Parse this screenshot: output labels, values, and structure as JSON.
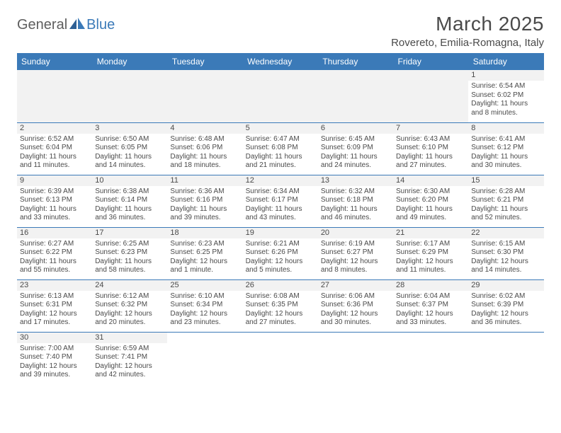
{
  "logo": {
    "part1": "General",
    "part2": "Blue"
  },
  "title": "March 2025",
  "location": "Rovereto, Emilia-Romagna, Italy",
  "colors": {
    "header_bg": "#3b7ab8",
    "header_text": "#ffffff",
    "daynum_bg": "#f2f2f2",
    "border": "#3b7ab8",
    "text": "#4a4a4a",
    "logo_gray": "#5e5e5e",
    "logo_blue": "#3b7ab8",
    "page_bg": "#ffffff"
  },
  "fonts": {
    "title_size": 28,
    "location_size": 15,
    "header_size": 12,
    "daynum_size": 11,
    "body_size": 10
  },
  "weekdays": [
    "Sunday",
    "Monday",
    "Tuesday",
    "Wednesday",
    "Thursday",
    "Friday",
    "Saturday"
  ],
  "weeks": [
    [
      null,
      null,
      null,
      null,
      null,
      null,
      {
        "n": "1",
        "sunrise": "6:54 AM",
        "sunset": "6:02 PM",
        "daylight": "11 hours and 8 minutes."
      }
    ],
    [
      {
        "n": "2",
        "sunrise": "6:52 AM",
        "sunset": "6:04 PM",
        "daylight": "11 hours and 11 minutes."
      },
      {
        "n": "3",
        "sunrise": "6:50 AM",
        "sunset": "6:05 PM",
        "daylight": "11 hours and 14 minutes."
      },
      {
        "n": "4",
        "sunrise": "6:48 AM",
        "sunset": "6:06 PM",
        "daylight": "11 hours and 18 minutes."
      },
      {
        "n": "5",
        "sunrise": "6:47 AM",
        "sunset": "6:08 PM",
        "daylight": "11 hours and 21 minutes."
      },
      {
        "n": "6",
        "sunrise": "6:45 AM",
        "sunset": "6:09 PM",
        "daylight": "11 hours and 24 minutes."
      },
      {
        "n": "7",
        "sunrise": "6:43 AM",
        "sunset": "6:10 PM",
        "daylight": "11 hours and 27 minutes."
      },
      {
        "n": "8",
        "sunrise": "6:41 AM",
        "sunset": "6:12 PM",
        "daylight": "11 hours and 30 minutes."
      }
    ],
    [
      {
        "n": "9",
        "sunrise": "6:39 AM",
        "sunset": "6:13 PM",
        "daylight": "11 hours and 33 minutes."
      },
      {
        "n": "10",
        "sunrise": "6:38 AM",
        "sunset": "6:14 PM",
        "daylight": "11 hours and 36 minutes."
      },
      {
        "n": "11",
        "sunrise": "6:36 AM",
        "sunset": "6:16 PM",
        "daylight": "11 hours and 39 minutes."
      },
      {
        "n": "12",
        "sunrise": "6:34 AM",
        "sunset": "6:17 PM",
        "daylight": "11 hours and 43 minutes."
      },
      {
        "n": "13",
        "sunrise": "6:32 AM",
        "sunset": "6:18 PM",
        "daylight": "11 hours and 46 minutes."
      },
      {
        "n": "14",
        "sunrise": "6:30 AM",
        "sunset": "6:20 PM",
        "daylight": "11 hours and 49 minutes."
      },
      {
        "n": "15",
        "sunrise": "6:28 AM",
        "sunset": "6:21 PM",
        "daylight": "11 hours and 52 minutes."
      }
    ],
    [
      {
        "n": "16",
        "sunrise": "6:27 AM",
        "sunset": "6:22 PM",
        "daylight": "11 hours and 55 minutes."
      },
      {
        "n": "17",
        "sunrise": "6:25 AM",
        "sunset": "6:23 PM",
        "daylight": "11 hours and 58 minutes."
      },
      {
        "n": "18",
        "sunrise": "6:23 AM",
        "sunset": "6:25 PM",
        "daylight": "12 hours and 1 minute."
      },
      {
        "n": "19",
        "sunrise": "6:21 AM",
        "sunset": "6:26 PM",
        "daylight": "12 hours and 5 minutes."
      },
      {
        "n": "20",
        "sunrise": "6:19 AM",
        "sunset": "6:27 PM",
        "daylight": "12 hours and 8 minutes."
      },
      {
        "n": "21",
        "sunrise": "6:17 AM",
        "sunset": "6:29 PM",
        "daylight": "12 hours and 11 minutes."
      },
      {
        "n": "22",
        "sunrise": "6:15 AM",
        "sunset": "6:30 PM",
        "daylight": "12 hours and 14 minutes."
      }
    ],
    [
      {
        "n": "23",
        "sunrise": "6:13 AM",
        "sunset": "6:31 PM",
        "daylight": "12 hours and 17 minutes."
      },
      {
        "n": "24",
        "sunrise": "6:12 AM",
        "sunset": "6:32 PM",
        "daylight": "12 hours and 20 minutes."
      },
      {
        "n": "25",
        "sunrise": "6:10 AM",
        "sunset": "6:34 PM",
        "daylight": "12 hours and 23 minutes."
      },
      {
        "n": "26",
        "sunrise": "6:08 AM",
        "sunset": "6:35 PM",
        "daylight": "12 hours and 27 minutes."
      },
      {
        "n": "27",
        "sunrise": "6:06 AM",
        "sunset": "6:36 PM",
        "daylight": "12 hours and 30 minutes."
      },
      {
        "n": "28",
        "sunrise": "6:04 AM",
        "sunset": "6:37 PM",
        "daylight": "12 hours and 33 minutes."
      },
      {
        "n": "29",
        "sunrise": "6:02 AM",
        "sunset": "6:39 PM",
        "daylight": "12 hours and 36 minutes."
      }
    ],
    [
      {
        "n": "30",
        "sunrise": "7:00 AM",
        "sunset": "7:40 PM",
        "daylight": "12 hours and 39 minutes."
      },
      {
        "n": "31",
        "sunrise": "6:59 AM",
        "sunset": "7:41 PM",
        "daylight": "12 hours and 42 minutes."
      },
      null,
      null,
      null,
      null,
      null
    ]
  ],
  "labels": {
    "sunrise": "Sunrise: ",
    "sunset": "Sunset: ",
    "daylight": "Daylight: "
  }
}
